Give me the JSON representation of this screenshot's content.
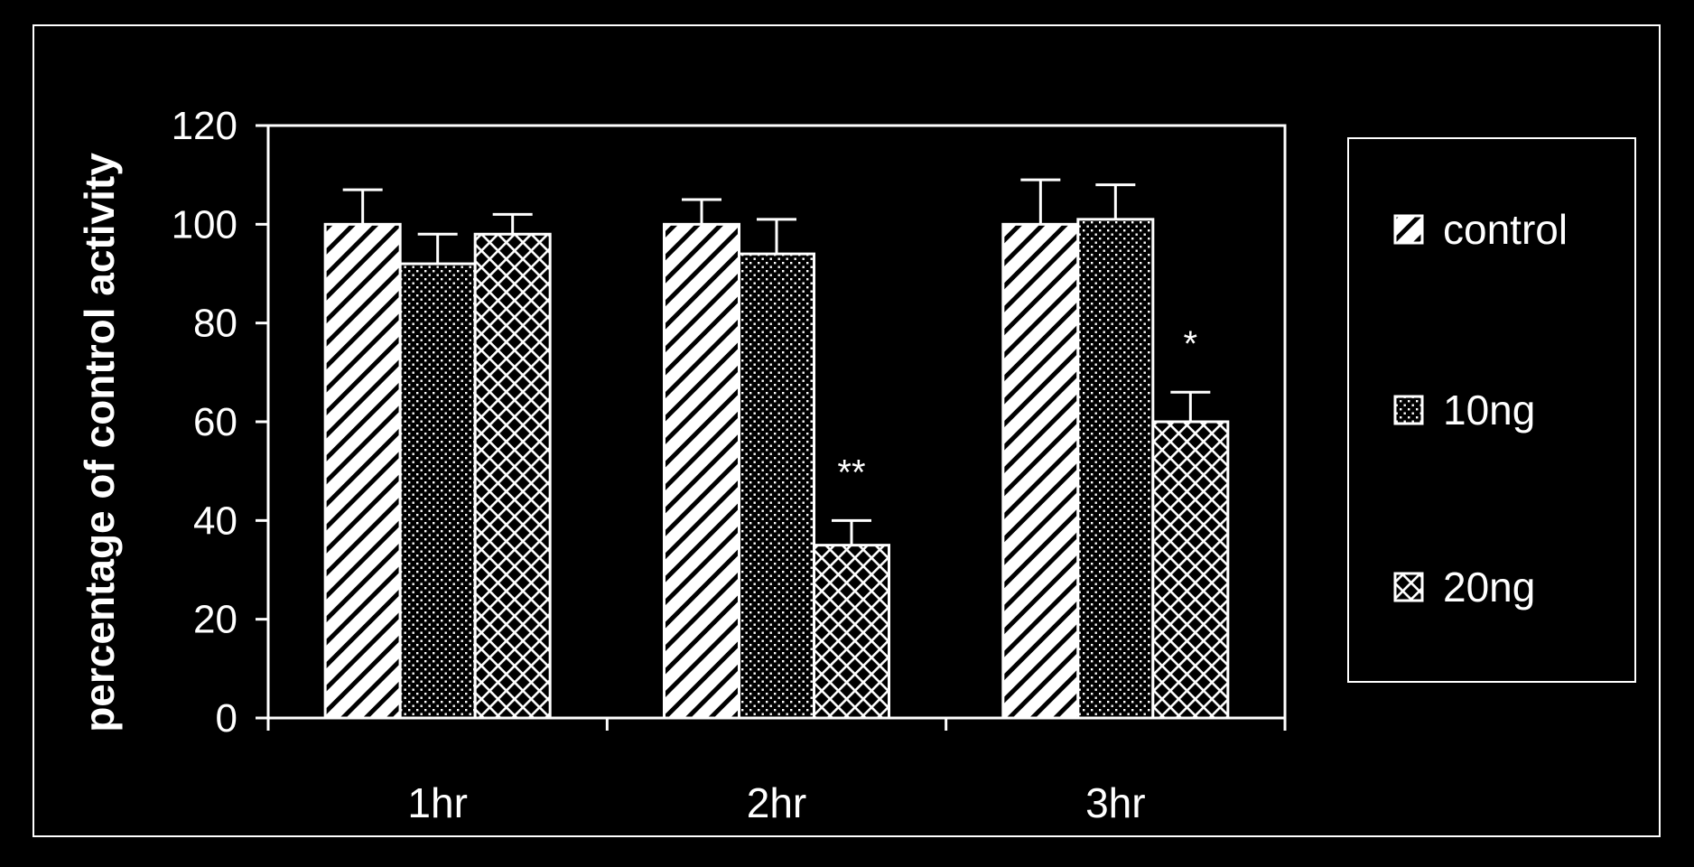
{
  "chart_data": {
    "type": "bar",
    "title": "",
    "xlabel": "",
    "ylabel": "percentage of control activity",
    "categories": [
      "1hr",
      "2hr",
      "3hr"
    ],
    "ylim": [
      0,
      120
    ],
    "yticks": [
      0,
      20,
      40,
      60,
      80,
      100,
      120
    ],
    "grid": false,
    "legend_position": "right",
    "series": [
      {
        "name": "control",
        "pattern": "diagonal-hatch",
        "values": [
          100,
          100,
          100
        ],
        "errors": [
          7,
          5,
          9
        ]
      },
      {
        "name": "10ng",
        "pattern": "dots",
        "values": [
          92,
          94,
          101
        ],
        "errors": [
          6,
          7,
          7
        ]
      },
      {
        "name": "20ng",
        "pattern": "crosshatch",
        "values": [
          98,
          35,
          60
        ],
        "errors": [
          4,
          5,
          6
        ]
      }
    ],
    "annotations": [
      {
        "text": "**",
        "category": "2hr",
        "series": "20ng"
      },
      {
        "text": "*",
        "category": "3hr",
        "series": "20ng"
      }
    ],
    "colors": {
      "background": "#000000",
      "foreground": "#ffffff"
    }
  }
}
